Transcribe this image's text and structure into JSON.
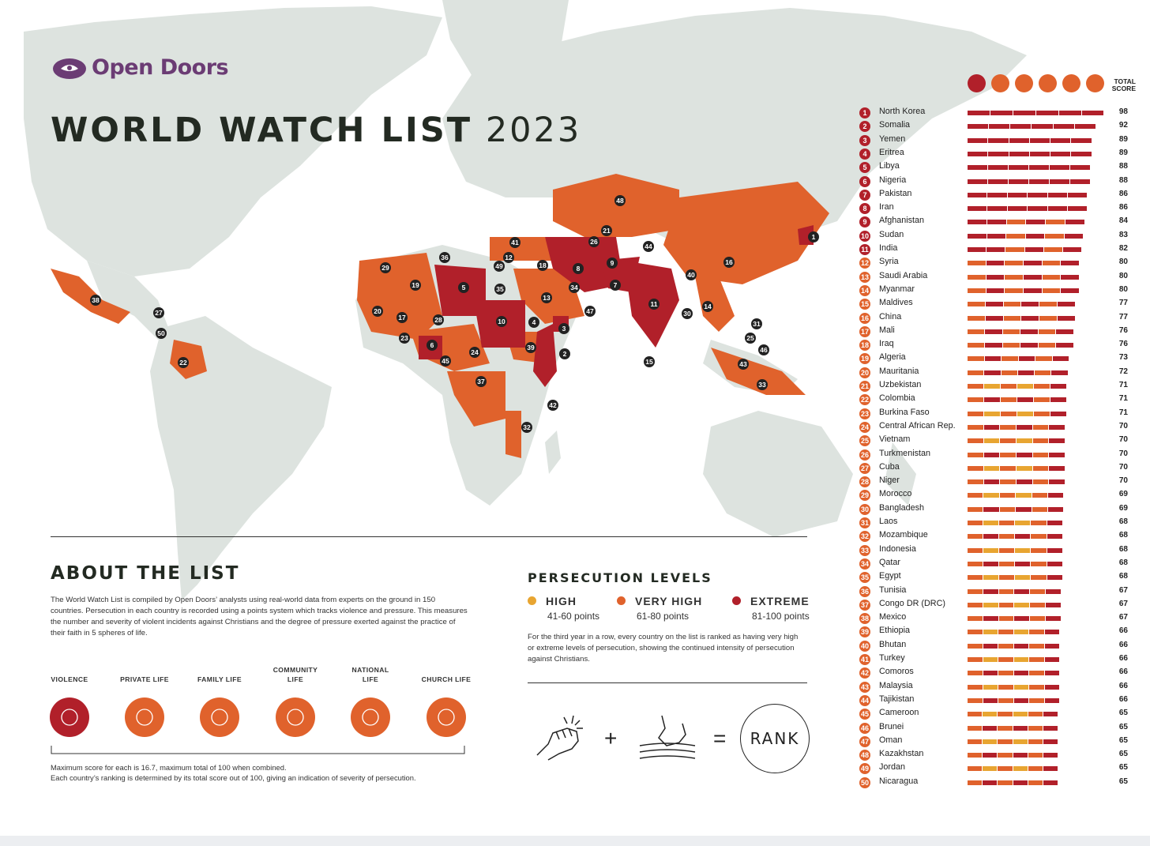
{
  "brand": {
    "logo_text": "Open Doors"
  },
  "title": {
    "bold": "WORLD WATCH LIST",
    "year": "2023"
  },
  "colors": {
    "high": "#e8a531",
    "very_high": "#e0622c",
    "extreme": "#b1202a",
    "land": "#dde3df",
    "violence": "#b1202a",
    "sphere": "#e0622c"
  },
  "about": {
    "heading": "ABOUT THE LIST",
    "paragraph": "The World Watch List is compiled by Open Doors’ analysts using real-world data from experts on the ground in 150 countries. Persecution in each country is recorded using a points system which tracks violence and pressure. This measures the number and severity of violent incidents against Christians and the degree of pressure exerted against the practice of their faith in 5 spheres of life.",
    "spheres": [
      {
        "label": "VIOLENCE",
        "icon": "violence-icon"
      },
      {
        "label": "PRIVATE LIFE",
        "icon": "private-life-icon"
      },
      {
        "label": "FAMILY LIFE",
        "icon": "family-life-icon"
      },
      {
        "label": "COMMUNITY LIFE",
        "icon": "community-life-icon"
      },
      {
        "label": "NATIONAL LIFE",
        "icon": "national-life-icon"
      },
      {
        "label": "CHURCH LIFE",
        "icon": "church-life-icon"
      }
    ],
    "footnote_1": "Maximum score for each is 16.7, maximum total of 100 when combined.",
    "footnote_2": "Each country’s ranking is determined by its total score out of 100, giving an indication of severity of persecution."
  },
  "levels": {
    "heading": "PERSECUTION LEVELS",
    "items": [
      {
        "label": "HIGH",
        "points": "41-60 points",
        "color": "#e8a531"
      },
      {
        "label": "VERY HIGH",
        "points": "61-80 points",
        "color": "#e0622c"
      },
      {
        "label": "EXTREME",
        "points": "81-100 points",
        "color": "#b1202a"
      }
    ],
    "note": "For the third year in a row, every country on the list is ranked as having very high or extreme levels of persecution, showing the continued intensity of persecution against Christians."
  },
  "equation": {
    "plus": "+",
    "equals": "=",
    "result": "RANK"
  },
  "ranking": {
    "total_header_1": "TOTAL",
    "total_header_2": "SCORE",
    "countries": [
      {
        "rank": "1",
        "name": "North Korea",
        "score": "98"
      },
      {
        "rank": "2",
        "name": "Somalia",
        "score": "92"
      },
      {
        "rank": "3",
        "name": "Yemen",
        "score": "89"
      },
      {
        "rank": "4",
        "name": "Eritrea",
        "score": "89"
      },
      {
        "rank": "5",
        "name": "Libya",
        "score": "88"
      },
      {
        "rank": "6",
        "name": "Nigeria",
        "score": "88"
      },
      {
        "rank": "7",
        "name": "Pakistan",
        "score": "86"
      },
      {
        "rank": "8",
        "name": "Iran",
        "score": "86"
      },
      {
        "rank": "9",
        "name": "Afghanistan",
        "score": "84"
      },
      {
        "rank": "10",
        "name": "Sudan",
        "score": "83"
      },
      {
        "rank": "11",
        "name": "India",
        "score": "82"
      },
      {
        "rank": "12",
        "name": "Syria",
        "score": "80"
      },
      {
        "rank": "13",
        "name": "Saudi Arabia",
        "score": "80"
      },
      {
        "rank": "14",
        "name": "Myanmar",
        "score": "80"
      },
      {
        "rank": "15",
        "name": "Maldives",
        "score": "77"
      },
      {
        "rank": "16",
        "name": "China",
        "score": "77"
      },
      {
        "rank": "17",
        "name": "Mali",
        "score": "76"
      },
      {
        "rank": "18",
        "name": "Iraq",
        "score": "76"
      },
      {
        "rank": "19",
        "name": "Algeria",
        "score": "73"
      },
      {
        "rank": "20",
        "name": "Mauritania",
        "score": "72"
      },
      {
        "rank": "21",
        "name": "Uzbekistan",
        "score": "71"
      },
      {
        "rank": "22",
        "name": "Colombia",
        "score": "71"
      },
      {
        "rank": "23",
        "name": "Burkina Faso",
        "score": "71"
      },
      {
        "rank": "24",
        "name": "Central African Rep.",
        "score": "70"
      },
      {
        "rank": "25",
        "name": "Vietnam",
        "score": "70"
      },
      {
        "rank": "26",
        "name": "Turkmenistan",
        "score": "70"
      },
      {
        "rank": "27",
        "name": "Cuba",
        "score": "70"
      },
      {
        "rank": "28",
        "name": "Niger",
        "score": "70"
      },
      {
        "rank": "29",
        "name": "Morocco",
        "score": "69"
      },
      {
        "rank": "30",
        "name": "Bangladesh",
        "score": "69"
      },
      {
        "rank": "31",
        "name": "Laos",
        "score": "68"
      },
      {
        "rank": "32",
        "name": "Mozambique",
        "score": "68"
      },
      {
        "rank": "33",
        "name": "Indonesia",
        "score": "68"
      },
      {
        "rank": "34",
        "name": "Qatar",
        "score": "68"
      },
      {
        "rank": "35",
        "name": "Egypt",
        "score": "68"
      },
      {
        "rank": "36",
        "name": "Tunisia",
        "score": "67"
      },
      {
        "rank": "37",
        "name": "Congo DR (DRC)",
        "score": "67"
      },
      {
        "rank": "38",
        "name": "Mexico",
        "score": "67"
      },
      {
        "rank": "39",
        "name": "Ethiopia",
        "score": "66"
      },
      {
        "rank": "40",
        "name": "Bhutan",
        "score": "66"
      },
      {
        "rank": "41",
        "name": "Turkey",
        "score": "66"
      },
      {
        "rank": "42",
        "name": "Comoros",
        "score": "66"
      },
      {
        "rank": "43",
        "name": "Malaysia",
        "score": "66"
      },
      {
        "rank": "44",
        "name": "Tajikistan",
        "score": "66"
      },
      {
        "rank": "45",
        "name": "Cameroon",
        "score": "65"
      },
      {
        "rank": "46",
        "name": "Brunei",
        "score": "65"
      },
      {
        "rank": "47",
        "name": "Oman",
        "score": "65"
      },
      {
        "rank": "48",
        "name": "Kazakhstan",
        "score": "65"
      },
      {
        "rank": "49",
        "name": "Jordan",
        "score": "65"
      },
      {
        "rank": "50",
        "name": "Nicaragua",
        "score": "65"
      }
    ]
  }
}
